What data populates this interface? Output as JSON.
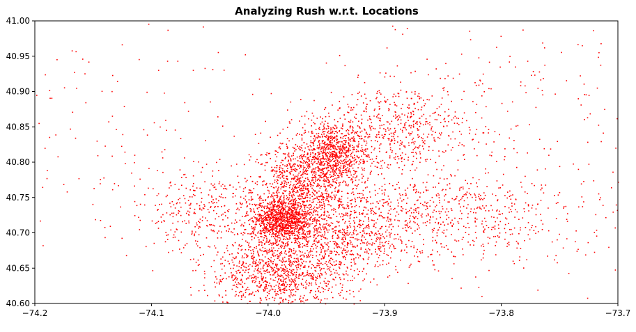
{
  "chart_data": {
    "type": "scatter",
    "title": "Analyzing Rush w.r.t. Locations",
    "xlabel": "",
    "ylabel": "",
    "xlim": [
      -74.2,
      -73.7
    ],
    "ylim": [
      40.6,
      41.0
    ],
    "x_ticks": [
      "−74.2",
      "−74.1",
      "−74.0",
      "−73.9",
      "−73.8",
      "−73.7"
    ],
    "y_ticks": [
      "40.60",
      "40.65",
      "40.70",
      "40.75",
      "40.80",
      "40.85",
      "40.90",
      "40.95",
      "41.00"
    ],
    "grid": false,
    "legend": "none",
    "marker_color": "#ff0000",
    "series": [
      {
        "clusters": [
          {
            "lon": -73.975,
            "lat": 40.76,
            "spread_lon": 0.02,
            "spread_lat": 0.035,
            "density": "very high"
          },
          {
            "lon": -73.945,
            "lat": 40.81,
            "spread_lon": 0.015,
            "spread_lat": 0.025,
            "density": "very high"
          },
          {
            "lon": -73.99,
            "lat": 40.72,
            "spread_lon": 0.012,
            "spread_lat": 0.015,
            "density": "very high"
          },
          {
            "lon": -73.95,
            "lat": 40.69,
            "spread_lon": 0.04,
            "spread_lat": 0.03,
            "density": "very high"
          },
          {
            "lon": -73.99,
            "lat": 40.64,
            "spread_lon": 0.03,
            "spread_lat": 0.025,
            "density": "very high"
          },
          {
            "lon": -73.88,
            "lat": 40.73,
            "spread_lon": 0.05,
            "spread_lat": 0.03,
            "density": "high"
          },
          {
            "lon": -73.89,
            "lat": 40.85,
            "spread_lon": 0.03,
            "spread_lat": 0.03,
            "density": "high"
          },
          {
            "lon": -73.8,
            "lat": 40.72,
            "spread_lon": 0.05,
            "spread_lat": 0.04,
            "density": "medium"
          },
          {
            "lon": -74.06,
            "lat": 40.73,
            "spread_lon": 0.03,
            "spread_lat": 0.03,
            "density": "medium"
          },
          {
            "lon": -74.15,
            "lat": 40.85,
            "spread_lon": 0.08,
            "spread_lat": 0.08,
            "density": "low"
          },
          {
            "lon": -73.8,
            "lat": 40.9,
            "spread_lon": 0.06,
            "spread_lat": 0.06,
            "density": "low"
          }
        ]
      }
    ]
  }
}
